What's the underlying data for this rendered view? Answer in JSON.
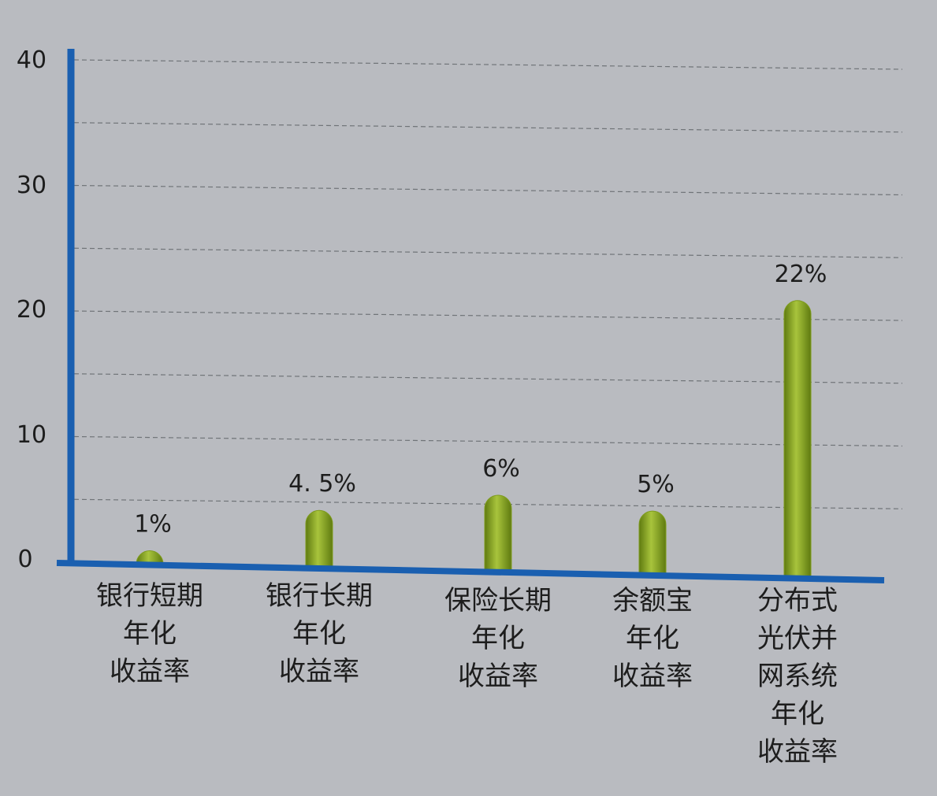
{
  "chart_data": {
    "type": "bar",
    "title": "",
    "xlabel": "",
    "ylabel": "",
    "ylim": [
      0,
      40
    ],
    "yticks": [
      "40",
      "30",
      "20",
      "10",
      "0"
    ],
    "grid": true,
    "categories": [
      [
        "银行短期",
        "年化",
        "收益率"
      ],
      [
        "银行长期",
        "年化",
        "收益率"
      ],
      [
        "保险长期",
        "年化",
        "收益率"
      ],
      [
        "余额宝",
        "年化",
        "收益率"
      ],
      [
        "分布式",
        "光伏并",
        "网系统",
        "年化",
        "收益率"
      ]
    ],
    "values": [
      1,
      4.5,
      6,
      5,
      22
    ],
    "data_labels": [
      "1%",
      "4. 5%",
      "6%",
      "5%",
      "22%"
    ],
    "colors": {
      "bar": "#7e9c1c",
      "bar_highlight": "#a8c43c",
      "axis": "#1a5fb0"
    }
  }
}
